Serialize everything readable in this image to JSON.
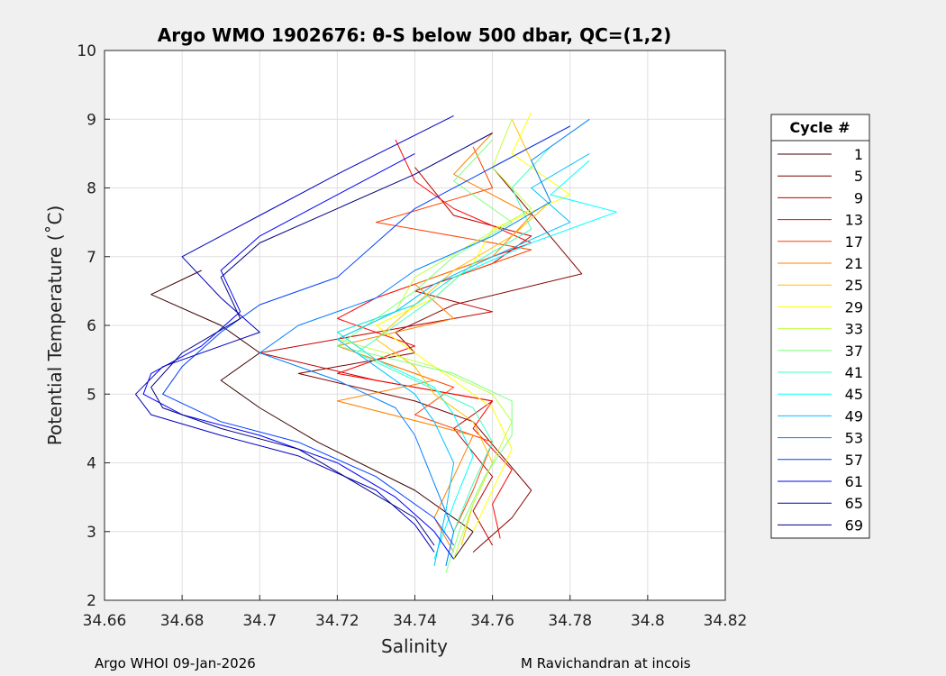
{
  "chart_data": {
    "type": "line",
    "title": "Argo WMO 1902676: θ-S below 500 dbar,  QC=(1,2)",
    "xlabel": "Salinity",
    "ylabel": "Potential Temperature (˚C)",
    "xlim": [
      34.66,
      34.82
    ],
    "ylim": [
      2,
      10
    ],
    "xticks": [
      34.66,
      34.68,
      34.7,
      34.72,
      34.74,
      34.76,
      34.78,
      34.8,
      34.82
    ],
    "xticklabels": [
      "34.66",
      "34.68",
      "34.7",
      "34.72",
      "34.74",
      "34.76",
      "34.78",
      "34.8",
      "34.82"
    ],
    "yticks": [
      2,
      3,
      4,
      5,
      6,
      7,
      8,
      9,
      10
    ],
    "yticklabels": [
      "2",
      "3",
      "4",
      "5",
      "6",
      "7",
      "8",
      "9",
      "10"
    ],
    "grid": true,
    "legend_title": "Cycle #",
    "legend_position": "right",
    "colormap": "jet",
    "series": [
      {
        "name": "1",
        "color": "#3c0000",
        "values": [
          [
            34.685,
            6.8
          ],
          [
            34.672,
            6.45
          ],
          [
            34.69,
            6.0
          ],
          [
            34.7,
            5.6
          ],
          [
            34.69,
            5.2
          ],
          [
            34.7,
            4.8
          ],
          [
            34.715,
            4.3
          ],
          [
            34.74,
            3.6
          ],
          [
            34.755,
            3.0
          ],
          [
            34.75,
            2.6
          ]
        ]
      },
      {
        "name": "5",
        "color": "#800000",
        "values": [
          [
            34.78,
            8.9
          ],
          [
            34.76,
            8.3
          ],
          [
            34.783,
            6.75
          ],
          [
            34.75,
            6.3
          ],
          [
            34.735,
            5.9
          ],
          [
            34.74,
            5.6
          ],
          [
            34.71,
            5.3
          ],
          [
            34.74,
            4.9
          ],
          [
            34.755,
            4.6
          ],
          [
            34.77,
            3.6
          ],
          [
            34.765,
            3.2
          ],
          [
            34.755,
            2.7
          ]
        ]
      },
      {
        "name": "9",
        "color": "#c00000",
        "values": [
          [
            34.74,
            8.3
          ],
          [
            34.75,
            7.6
          ],
          [
            34.77,
            7.3
          ],
          [
            34.76,
            6.9
          ],
          [
            34.74,
            6.5
          ],
          [
            34.76,
            6.2
          ],
          [
            34.73,
            5.9
          ],
          [
            34.7,
            5.6
          ],
          [
            34.73,
            5.2
          ],
          [
            34.76,
            4.9
          ],
          [
            34.75,
            4.5
          ],
          [
            34.76,
            3.8
          ],
          [
            34.755,
            3.3
          ],
          [
            34.76,
            2.8
          ]
        ]
      },
      {
        "name": "13",
        "color": "#ff0000",
        "values": [
          [
            34.735,
            8.7
          ],
          [
            34.74,
            8.1
          ],
          [
            34.75,
            7.7
          ],
          [
            34.77,
            7.2
          ],
          [
            34.75,
            6.8
          ],
          [
            34.73,
            6.4
          ],
          [
            34.72,
            6.1
          ],
          [
            34.74,
            5.7
          ],
          [
            34.72,
            5.3
          ],
          [
            34.76,
            4.9
          ],
          [
            34.755,
            4.5
          ],
          [
            34.765,
            3.9
          ],
          [
            34.76,
            3.4
          ],
          [
            34.762,
            2.9
          ]
        ]
      },
      {
        "name": "17",
        "color": "#ff4000",
        "values": [
          [
            34.755,
            8.6
          ],
          [
            34.76,
            8.0
          ],
          [
            34.73,
            7.5
          ],
          [
            34.77,
            7.1
          ],
          [
            34.75,
            6.7
          ],
          [
            34.74,
            6.3
          ],
          [
            34.72,
            5.9
          ],
          [
            34.73,
            5.5
          ],
          [
            34.75,
            5.1
          ],
          [
            34.74,
            4.7
          ],
          [
            34.76,
            4.3
          ],
          [
            34.755,
            3.6
          ],
          [
            34.75,
            3.0
          ]
        ]
      },
      {
        "name": "21",
        "color": "#ff8000",
        "values": [
          [
            34.76,
            8.8
          ],
          [
            34.75,
            8.2
          ],
          [
            34.77,
            7.6
          ],
          [
            34.76,
            7.0
          ],
          [
            34.74,
            6.6
          ],
          [
            34.75,
            6.1
          ],
          [
            34.72,
            5.7
          ],
          [
            34.745,
            5.2
          ],
          [
            34.72,
            4.9
          ],
          [
            34.755,
            4.4
          ],
          [
            34.75,
            3.8
          ],
          [
            34.745,
            3.2
          ],
          [
            34.75,
            2.7
          ]
        ]
      },
      {
        "name": "25",
        "color": "#ffc000",
        "values": [
          [
            34.765,
            9.0
          ],
          [
            34.77,
            8.4
          ],
          [
            34.775,
            7.8
          ],
          [
            34.765,
            7.3
          ],
          [
            34.75,
            6.8
          ],
          [
            34.74,
            6.3
          ],
          [
            34.73,
            5.8
          ],
          [
            34.74,
            5.4
          ],
          [
            34.745,
            5.0
          ],
          [
            34.755,
            4.6
          ],
          [
            34.76,
            4.0
          ],
          [
            34.755,
            3.4
          ],
          [
            34.752,
            2.8
          ]
        ]
      },
      {
        "name": "29",
        "color": "#ffff00",
        "values": [
          [
            34.77,
            9.1
          ],
          [
            34.765,
            8.5
          ],
          [
            34.78,
            7.9
          ],
          [
            34.76,
            7.4
          ],
          [
            34.755,
            6.9
          ],
          [
            34.745,
            6.4
          ],
          [
            34.73,
            6.0
          ],
          [
            34.74,
            5.6
          ],
          [
            34.75,
            5.2
          ],
          [
            34.76,
            4.8
          ],
          [
            34.765,
            4.2
          ],
          [
            34.76,
            3.6
          ],
          [
            34.755,
            3.0
          ]
        ]
      },
      {
        "name": "33",
        "color": "#c0ff40",
        "values": [
          [
            34.765,
            9.0
          ],
          [
            34.76,
            8.3
          ],
          [
            34.77,
            7.7
          ],
          [
            34.755,
            7.2
          ],
          [
            34.74,
            6.7
          ],
          [
            34.735,
            6.2
          ],
          [
            34.72,
            5.8
          ],
          [
            34.745,
            5.4
          ],
          [
            34.76,
            5.0
          ],
          [
            34.765,
            4.6
          ],
          [
            34.76,
            4.0
          ],
          [
            34.755,
            3.4
          ],
          [
            34.75,
            2.6
          ]
        ]
      },
      {
        "name": "37",
        "color": "#80ff80",
        "values": [
          [
            34.76,
            8.7
          ],
          [
            34.75,
            8.1
          ],
          [
            34.765,
            7.5
          ],
          [
            34.75,
            7.0
          ],
          [
            34.74,
            6.5
          ],
          [
            34.73,
            6.1
          ],
          [
            34.72,
            5.7
          ],
          [
            34.75,
            5.3
          ],
          [
            34.765,
            4.9
          ],
          [
            34.765,
            4.4
          ],
          [
            34.758,
            3.8
          ],
          [
            34.752,
            3.1
          ],
          [
            34.748,
            2.4
          ]
        ]
      },
      {
        "name": "41",
        "color": "#40ffc0",
        "values": [
          [
            34.775,
            8.6
          ],
          [
            34.765,
            8.0
          ],
          [
            34.77,
            7.4
          ],
          [
            34.755,
            6.9
          ],
          [
            34.745,
            6.4
          ],
          [
            34.735,
            6.0
          ],
          [
            34.725,
            5.6
          ],
          [
            34.74,
            5.2
          ],
          [
            34.755,
            4.8
          ],
          [
            34.76,
            4.3
          ],
          [
            34.755,
            3.7
          ],
          [
            34.75,
            3.0
          ],
          [
            34.748,
            2.5
          ]
        ]
      },
      {
        "name": "45",
        "color": "#00ffff",
        "values": [
          [
            34.785,
            8.4
          ],
          [
            34.775,
            7.9
          ],
          [
            34.792,
            7.65
          ],
          [
            34.77,
            7.2
          ],
          [
            34.75,
            6.7
          ],
          [
            34.74,
            6.3
          ],
          [
            34.72,
            5.9
          ],
          [
            34.73,
            5.5
          ],
          [
            34.745,
            5.1
          ],
          [
            34.75,
            4.7
          ],
          [
            34.755,
            4.1
          ],
          [
            34.75,
            3.4
          ],
          [
            34.745,
            2.6
          ]
        ]
      },
      {
        "name": "49",
        "color": "#00c0ff",
        "values": [
          [
            34.785,
            8.5
          ],
          [
            34.77,
            8.0
          ],
          [
            34.78,
            7.5
          ],
          [
            34.76,
            7.0
          ],
          [
            34.745,
            6.6
          ],
          [
            34.735,
            6.2
          ],
          [
            34.72,
            5.8
          ],
          [
            34.73,
            5.4
          ],
          [
            34.74,
            5.0
          ],
          [
            34.745,
            4.6
          ],
          [
            34.75,
            4.0
          ],
          [
            34.748,
            3.3
          ],
          [
            34.745,
            2.5
          ]
        ]
      },
      {
        "name": "53",
        "color": "#0080ff",
        "values": [
          [
            34.785,
            9.0
          ],
          [
            34.77,
            8.4
          ],
          [
            34.775,
            7.8
          ],
          [
            34.76,
            7.3
          ],
          [
            34.74,
            6.8
          ],
          [
            34.73,
            6.4
          ],
          [
            34.71,
            6.0
          ],
          [
            34.7,
            5.6
          ],
          [
            34.72,
            5.2
          ],
          [
            34.735,
            4.8
          ],
          [
            34.74,
            4.4
          ],
          [
            34.745,
            3.7
          ],
          [
            34.75,
            3.0
          ],
          [
            34.748,
            2.5
          ]
        ]
      },
      {
        "name": "57",
        "color": "#0040ff",
        "values": [
          [
            34.78,
            8.9
          ],
          [
            34.76,
            8.3
          ],
          [
            34.74,
            7.7
          ],
          [
            34.73,
            7.2
          ],
          [
            34.72,
            6.7
          ],
          [
            34.7,
            6.3
          ],
          [
            34.69,
            5.9
          ],
          [
            34.68,
            5.4
          ],
          [
            34.675,
            5.0
          ],
          [
            34.69,
            4.6
          ],
          [
            34.71,
            4.3
          ],
          [
            34.73,
            3.8
          ],
          [
            34.745,
            3.2
          ],
          [
            34.75,
            2.8
          ]
        ]
      },
      {
        "name": "61",
        "color": "#0000ff",
        "values": [
          [
            34.74,
            8.5
          ],
          [
            34.72,
            7.9
          ],
          [
            34.7,
            7.3
          ],
          [
            34.69,
            6.8
          ],
          [
            34.695,
            6.2
          ],
          [
            34.685,
            5.7
          ],
          [
            34.672,
            5.3
          ],
          [
            34.67,
            5.0
          ],
          [
            34.68,
            4.7
          ],
          [
            34.7,
            4.4
          ],
          [
            34.72,
            4.0
          ],
          [
            34.735,
            3.5
          ],
          [
            34.745,
            3.0
          ],
          [
            34.75,
            2.6
          ]
        ]
      },
      {
        "name": "65",
        "color": "#0000c0",
        "values": [
          [
            34.75,
            9.05
          ],
          [
            34.72,
            8.2
          ],
          [
            34.7,
            7.6
          ],
          [
            34.68,
            7.0
          ],
          [
            34.69,
            6.4
          ],
          [
            34.7,
            5.9
          ],
          [
            34.675,
            5.4
          ],
          [
            34.668,
            5.0
          ],
          [
            34.672,
            4.7
          ],
          [
            34.69,
            4.4
          ],
          [
            34.71,
            4.1
          ],
          [
            34.73,
            3.6
          ],
          [
            34.74,
            3.1
          ],
          [
            34.745,
            2.7
          ]
        ]
      },
      {
        "name": "69",
        "color": "#000080",
        "values": [
          [
            34.76,
            8.8
          ],
          [
            34.74,
            8.2
          ],
          [
            34.72,
            7.7
          ],
          [
            34.7,
            7.2
          ],
          [
            34.69,
            6.7
          ],
          [
            34.695,
            6.1
          ],
          [
            34.68,
            5.6
          ],
          [
            34.672,
            5.1
          ],
          [
            34.675,
            4.8
          ],
          [
            34.69,
            4.5
          ],
          [
            34.71,
            4.2
          ],
          [
            34.725,
            3.7
          ],
          [
            34.74,
            3.2
          ],
          [
            34.745,
            2.8
          ]
        ]
      }
    ]
  },
  "footer": {
    "left": "Argo WHOI 09-Jan-2026",
    "right": "M Ravichandran at incois"
  }
}
